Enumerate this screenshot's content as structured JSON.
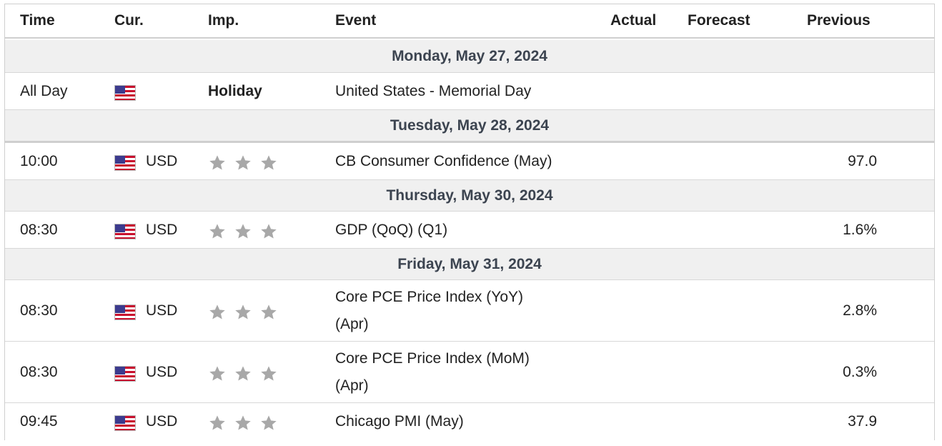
{
  "colors": {
    "border": "#cfcfcf",
    "date_row_bg": "#f0f0f0",
    "date_text": "#3c4450",
    "star": "#a8a8a8"
  },
  "header": {
    "time": "Time",
    "cur": "Cur.",
    "imp": "Imp.",
    "event": "Event",
    "actual": "Actual",
    "forecast": "Forecast",
    "previous": "Previous"
  },
  "days": [
    {
      "date": "Monday, May 27, 2024",
      "events": [
        {
          "time": "All Day",
          "flag": "us-flag-icon",
          "currency": "",
          "importance": "Holiday",
          "event": "United States - Memorial Day",
          "actual": "",
          "forecast": "",
          "previous": ""
        }
      ]
    },
    {
      "date": "Tuesday, May 28, 2024",
      "events": [
        {
          "time": "10:00",
          "flag": "us-flag-icon",
          "currency": "USD",
          "importance_stars": 3,
          "event": "CB Consumer Confidence (May)",
          "actual": "",
          "forecast": "",
          "previous": "97.0"
        }
      ]
    },
    {
      "date": "Thursday, May 30, 2024",
      "events": [
        {
          "time": "08:30",
          "flag": "us-flag-icon",
          "currency": "USD",
          "importance_stars": 3,
          "event": "GDP (QoQ) (Q1)",
          "actual": "",
          "forecast": "",
          "previous": "1.6%"
        }
      ]
    },
    {
      "date": "Friday, May 31, 2024",
      "events": [
        {
          "time": "08:30",
          "flag": "us-flag-icon",
          "currency": "USD",
          "importance_stars": 3,
          "event_line1": "Core PCE Price Index (YoY)",
          "event_line2": "(Apr)",
          "actual": "",
          "forecast": "",
          "previous": "2.8%"
        },
        {
          "time": "08:30",
          "flag": "us-flag-icon",
          "currency": "USD",
          "importance_stars": 3,
          "event_line1": "Core PCE Price Index (MoM)",
          "event_line2": "(Apr)",
          "actual": "",
          "forecast": "",
          "previous": "0.3%"
        },
        {
          "time": "09:45",
          "flag": "us-flag-icon",
          "currency": "USD",
          "importance_stars": 3,
          "event": "Chicago PMI (May)",
          "actual": "",
          "forecast": "",
          "previous": "37.9"
        }
      ]
    }
  ]
}
